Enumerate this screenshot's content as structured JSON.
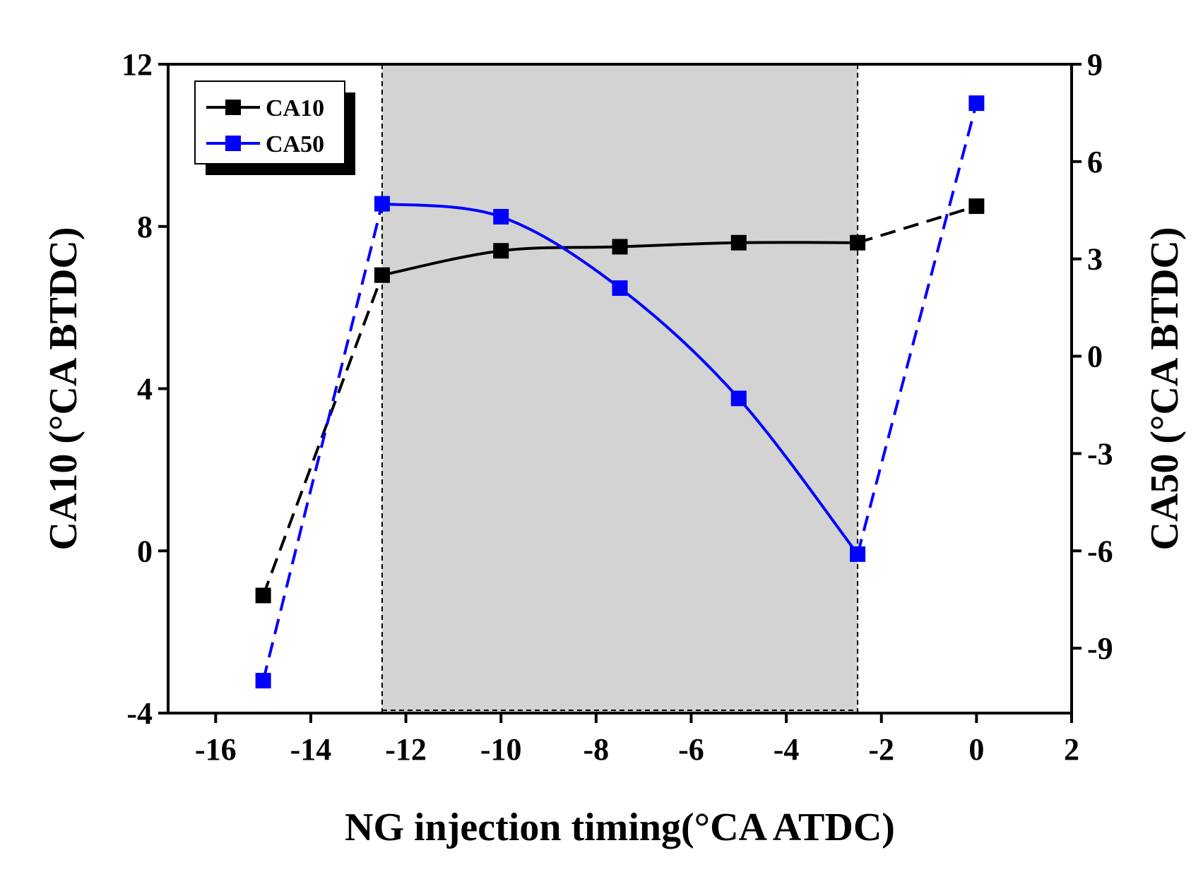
{
  "chart_data": {
    "type": "line",
    "xlabel": "NG injection timing(°CA  ATDC)",
    "ylabel_left": "CA10 (°CA BTDC)",
    "ylabel_right": "CA50 (°CA BTDC)",
    "xlim": [
      -17,
      2
    ],
    "ylim_left": [
      -4,
      12
    ],
    "ylim_right": [
      -11,
      9
    ],
    "x_ticks": [
      -16,
      -14,
      -12,
      -10,
      -8,
      -6,
      -4,
      -2,
      0,
      2
    ],
    "y_left_ticks": [
      -4,
      0,
      4,
      8,
      12
    ],
    "y_right_ticks": [
      -9,
      -6,
      -3,
      0,
      3,
      6,
      9
    ],
    "shaded_region": [
      -12.5,
      -2.5
    ],
    "legend_position": "top-left",
    "series": [
      {
        "name": "CA10",
        "axis": "left",
        "color": "#000000",
        "x": [
          -15,
          -12.5,
          -10,
          -7.5,
          -5,
          -2.5,
          0
        ],
        "values": [
          -1.1,
          6.8,
          7.4,
          7.5,
          7.6,
          7.6,
          8.5
        ]
      },
      {
        "name": "CA50",
        "axis": "right",
        "color": "#0000ff",
        "x": [
          -15,
          -12.5,
          -10,
          -7.5,
          -5,
          -2.5,
          0
        ],
        "values": [
          -10.0,
          4.7,
          4.3,
          2.1,
          -1.3,
          -6.1,
          7.8
        ]
      }
    ]
  }
}
